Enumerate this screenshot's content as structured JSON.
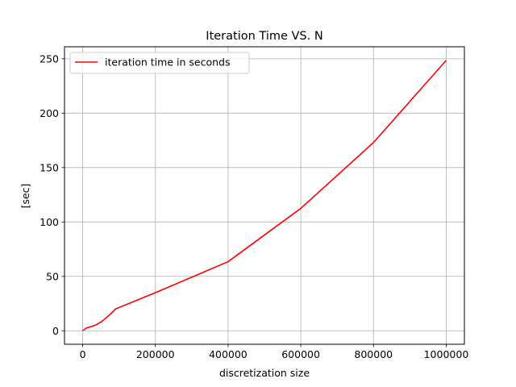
{
  "chart_data": {
    "type": "line",
    "title": "Iteration Time VS. N",
    "xlabel": "discretization size",
    "ylabel": "[sec]",
    "xlim": [
      -50000,
      1050000
    ],
    "ylim": [
      -12.4,
      261.0
    ],
    "xticks": [
      0,
      200000,
      400000,
      600000,
      800000,
      1000000
    ],
    "xtick_labels": [
      "0",
      "200000",
      "400000",
      "600000",
      "800000",
      "1000000"
    ],
    "yticks": [
      0,
      50,
      100,
      150,
      200,
      250
    ],
    "ytick_labels": [
      "0",
      "50",
      "100",
      "150",
      "200",
      "250"
    ],
    "grid": true,
    "legend_position": "upper-left",
    "series": [
      {
        "name": "iteration time in seconds",
        "color": "#ff0000",
        "x": [
          0,
          10000,
          20000,
          30000,
          40000,
          50000,
          60000,
          70000,
          80000,
          90000,
          200000,
          400000,
          600000,
          800000,
          1000000
        ],
        "y": [
          0,
          2.5,
          3.5,
          4.5,
          6,
          8,
          10.5,
          13.5,
          16.5,
          20,
          35,
          63.5,
          112.5,
          173,
          248.5
        ]
      }
    ]
  }
}
